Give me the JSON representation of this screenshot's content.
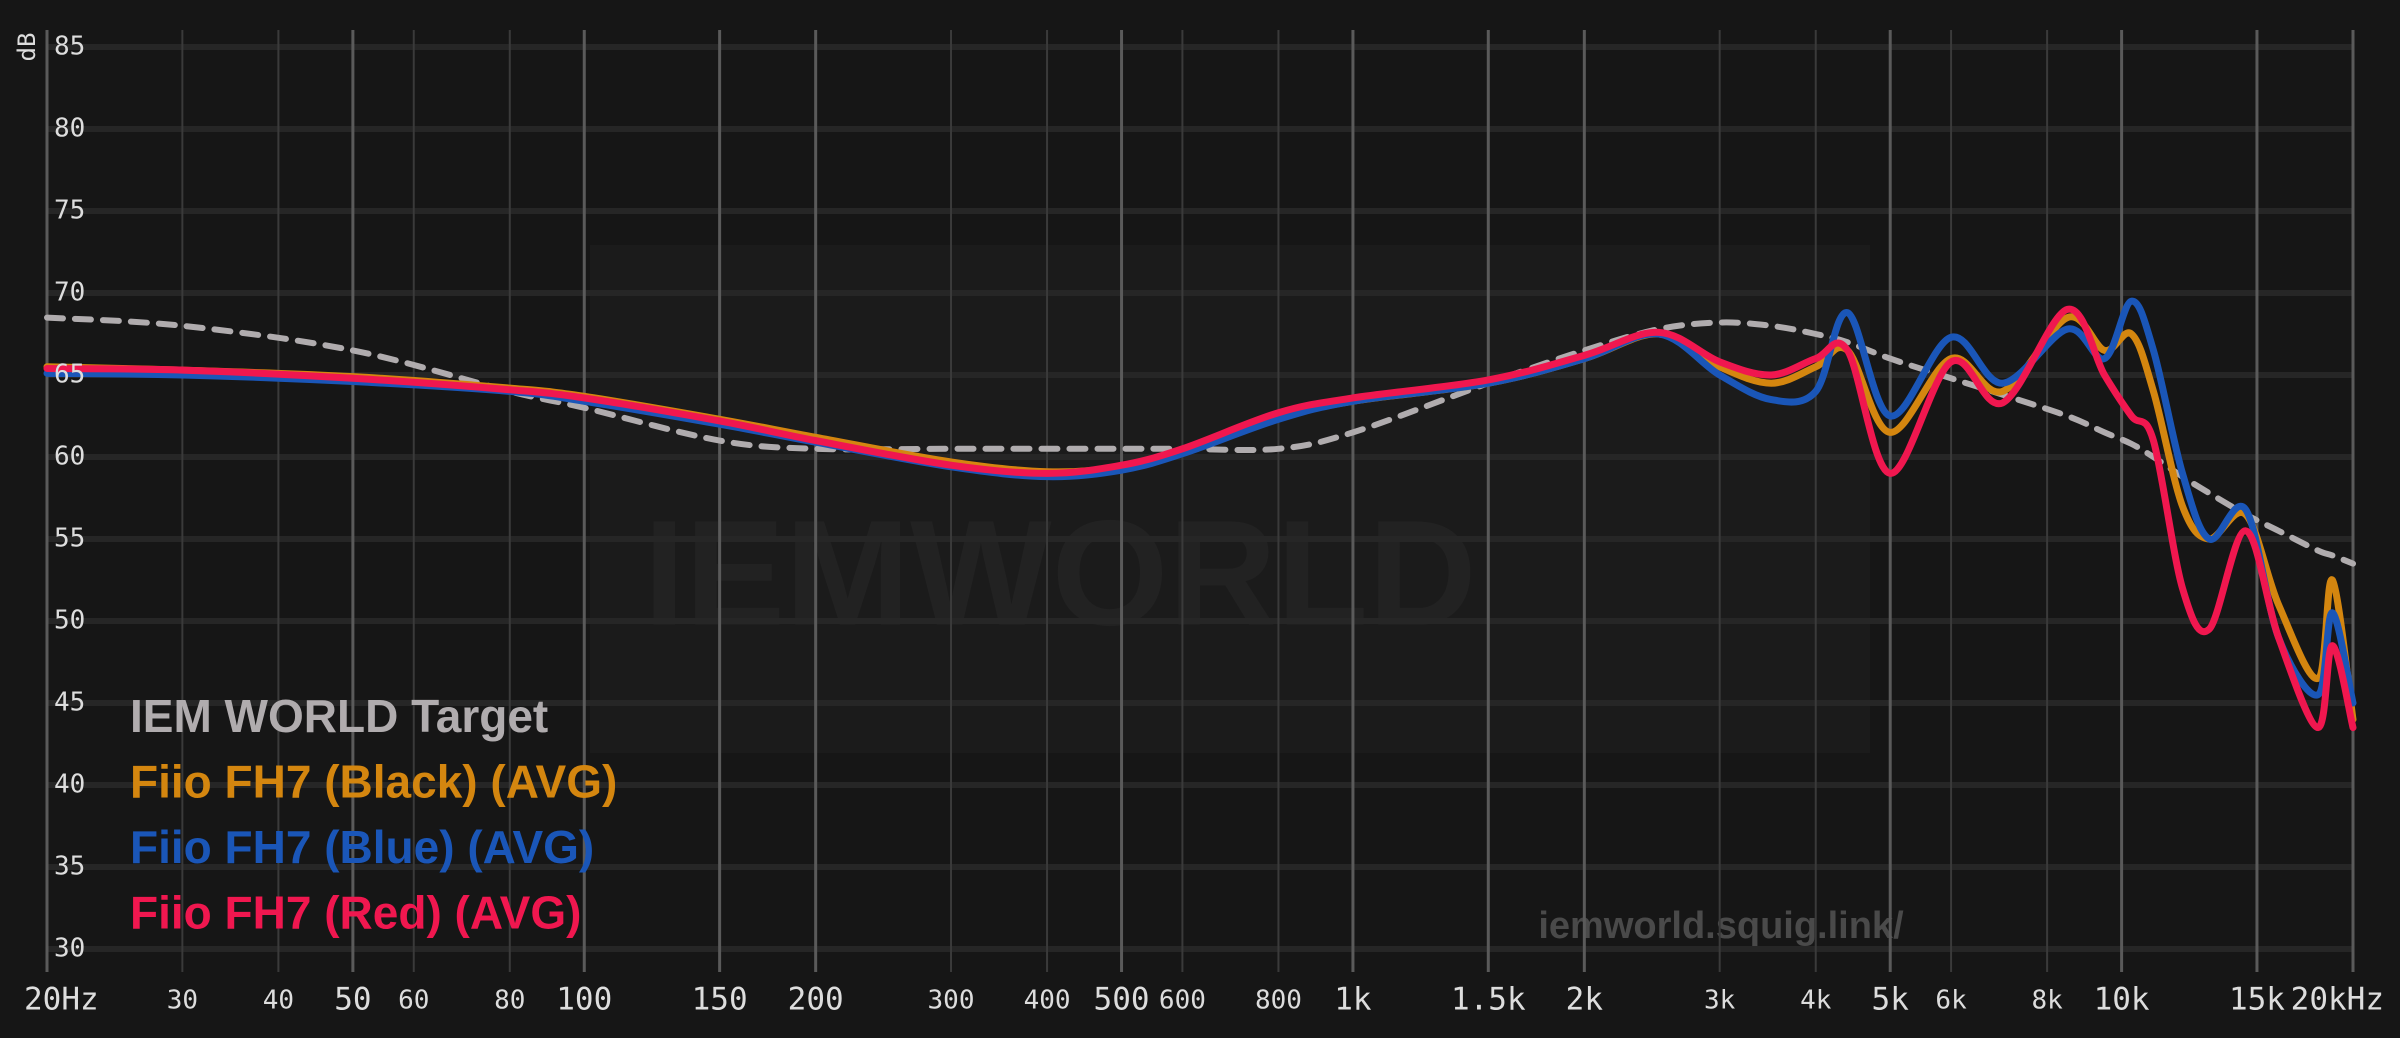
{
  "chart_data": {
    "type": "line",
    "y_label": "dB",
    "watermark": "IEMWORLD",
    "annotation": "iemworld.squig.link/",
    "log_x": true,
    "grid": true,
    "xlim": [
      20,
      20000
    ],
    "ylim": [
      30,
      85
    ],
    "yticks": [
      30,
      35,
      40,
      45,
      50,
      55,
      60,
      65,
      70,
      75,
      80,
      85
    ],
    "xticks": [
      {
        "value": 20,
        "label": "20Hz"
      },
      30,
      40,
      50,
      60,
      80,
      100,
      150,
      200,
      300,
      400,
      500,
      600,
      800,
      {
        "value": 1000,
        "label": "1k"
      },
      {
        "value": 1500,
        "label": "1.5k"
      },
      {
        "value": 2000,
        "label": "2k"
      },
      {
        "value": 3000,
        "label": "3k"
      },
      {
        "value": 4000,
        "label": "4k"
      },
      {
        "value": 5000,
        "label": "5k"
      },
      {
        "value": 6000,
        "label": "6k"
      },
      {
        "value": 8000,
        "label": "8k"
      },
      {
        "value": 10000,
        "label": "10k"
      },
      {
        "value": 15000,
        "label": "15k"
      },
      {
        "value": 20000,
        "label": "20kHz"
      }
    ],
    "x": [
      20,
      30,
      50,
      80,
      100,
      150,
      200,
      300,
      400,
      500,
      600,
      800,
      1000,
      1500,
      2000,
      2500,
      3000,
      3500,
      4000,
      4400,
      5000,
      6000,
      7000,
      8500,
      9500,
      10300,
      11000,
      12000,
      13000,
      14500,
      16000,
      18000,
      18800,
      20000
    ],
    "series": [
      {
        "name": "IEM WORLD Target",
        "color": "#b0acae",
        "dashed": true,
        "values": [
          68.5,
          68,
          66.5,
          64,
          63,
          61,
          60.5,
          60.5,
          60.5,
          60.5,
          60.5,
          60.5,
          61.5,
          64.5,
          66.5,
          67.8,
          68.2,
          68,
          67.5,
          67,
          66,
          64.8,
          63.8,
          62.5,
          61.5,
          60.8,
          60,
          58.8,
          57.8,
          56.5,
          55.5,
          54.3,
          54,
          53.5
        ]
      },
      {
        "name": "Fiio FH7 (Black) (AVG)",
        "color": "#d4860f",
        "values": [
          65.5,
          65.3,
          64.9,
          64.2,
          63.7,
          62.3,
          61.2,
          59.7,
          59.1,
          59.4,
          60.4,
          62.4,
          63.4,
          64.5,
          66,
          67.5,
          65.5,
          64.5,
          65.5,
          66.5,
          61.5,
          66,
          64,
          68.5,
          66.5,
          67.5,
          64,
          57,
          55,
          56.5,
          51,
          46.5,
          52.5,
          44
        ]
      },
      {
        "name": "Fiio FH7 (Blue) (AVG)",
        "color": "#1a56b8",
        "values": [
          65.1,
          65,
          64.6,
          64,
          63.4,
          62,
          60.9,
          59.4,
          58.8,
          59.2,
          60.2,
          62.3,
          63.4,
          64.5,
          66,
          67.5,
          65,
          63.5,
          64,
          68.8,
          62.5,
          67.3,
          64.5,
          67.8,
          66,
          69.5,
          66.5,
          59,
          55,
          56.8,
          49,
          45.5,
          50.5,
          45
        ]
      },
      {
        "name": "Fiio FH7 (Red) (AVG)",
        "color": "#f0174f",
        "values": [
          65.4,
          65.3,
          64.8,
          64.1,
          63.6,
          62.2,
          61,
          59.5,
          59,
          59.5,
          60.5,
          62.7,
          63.6,
          64.7,
          66.2,
          67.6,
          65.8,
          65,
          66,
          66.5,
          59,
          65.8,
          63.3,
          69,
          65,
          62.5,
          61,
          52,
          49.5,
          55.5,
          49,
          43.5,
          48.5,
          43.5
        ]
      }
    ]
  }
}
